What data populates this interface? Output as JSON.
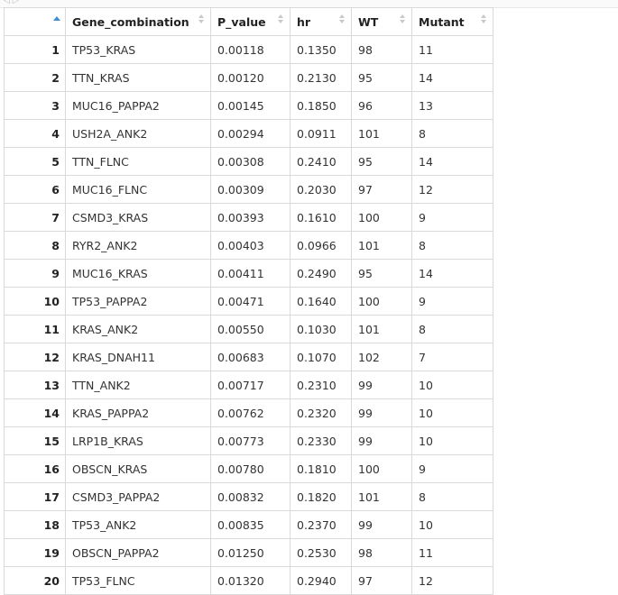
{
  "table": {
    "columns": [
      "",
      "Gene_combination",
      "P_value",
      "hr",
      "WT",
      "Mutant"
    ],
    "rows": [
      [
        "1",
        "TP53_KRAS",
        "0.00118",
        "0.1350",
        "98",
        "11"
      ],
      [
        "2",
        "TTN_KRAS",
        "0.00120",
        "0.2130",
        "95",
        "14"
      ],
      [
        "3",
        "MUC16_PAPPA2",
        "0.00145",
        "0.1850",
        "96",
        "13"
      ],
      [
        "4",
        "USH2A_ANK2",
        "0.00294",
        "0.0911",
        "101",
        "8"
      ],
      [
        "5",
        "TTN_FLNC",
        "0.00308",
        "0.2410",
        "95",
        "14"
      ],
      [
        "6",
        "MUC16_FLNC",
        "0.00309",
        "0.2030",
        "97",
        "12"
      ],
      [
        "7",
        "CSMD3_KRAS",
        "0.00393",
        "0.1610",
        "100",
        "9"
      ],
      [
        "8",
        "RYR2_ANK2",
        "0.00403",
        "0.0966",
        "101",
        "8"
      ],
      [
        "9",
        "MUC16_KRAS",
        "0.00411",
        "0.2490",
        "95",
        "14"
      ],
      [
        "10",
        "TP53_PAPPA2",
        "0.00471",
        "0.1640",
        "100",
        "9"
      ],
      [
        "11",
        "KRAS_ANK2",
        "0.00550",
        "0.1030",
        "101",
        "8"
      ],
      [
        "12",
        "KRAS_DNAH11",
        "0.00683",
        "0.1070",
        "102",
        "7"
      ],
      [
        "13",
        "TTN_ANK2",
        "0.00717",
        "0.2310",
        "99",
        "10"
      ],
      [
        "14",
        "KRAS_PAPPA2",
        "0.00762",
        "0.2320",
        "99",
        "10"
      ],
      [
        "15",
        "LRP1B_KRAS",
        "0.00773",
        "0.2330",
        "99",
        "10"
      ],
      [
        "16",
        "OBSCN_KRAS",
        "0.00780",
        "0.1810",
        "100",
        "9"
      ],
      [
        "17",
        "CSMD3_PAPPA2",
        "0.00832",
        "0.1820",
        "101",
        "8"
      ],
      [
        "18",
        "TP53_ANK2",
        "0.00835",
        "0.2370",
        "99",
        "10"
      ],
      [
        "19",
        "OBSCN_PAPPA2",
        "0.01250",
        "0.2530",
        "98",
        "11"
      ],
      [
        "20",
        "TP53_FLNC",
        "0.01320",
        "0.2940",
        "97",
        "12"
      ]
    ]
  },
  "colors": {
    "sort_active": "#3b8fd9",
    "sort_inactive": "#c8c8c8",
    "grid": "#d9d9d9"
  },
  "icons": {
    "sort_active": "sort-ascending-icon",
    "sort_inactive": "sort-both-icon"
  }
}
